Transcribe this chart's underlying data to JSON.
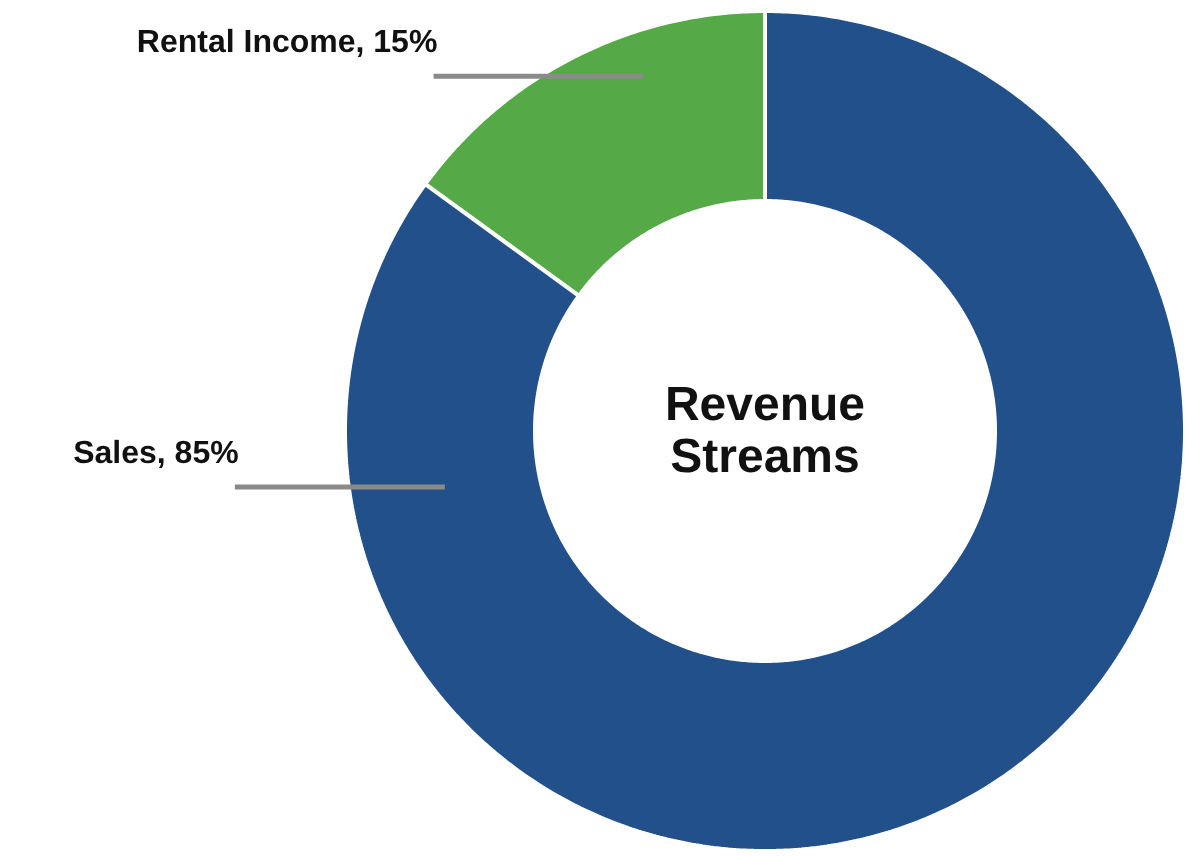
{
  "chart_data": {
    "type": "donut",
    "title": "Revenue Streams",
    "categories": [
      "Rental Income",
      "Sales"
    ],
    "values": [
      15,
      85
    ],
    "colors": [
      "#55aa47",
      "#22508a"
    ],
    "value_labels": [
      ", 15%",
      ", 85%"
    ]
  }
}
